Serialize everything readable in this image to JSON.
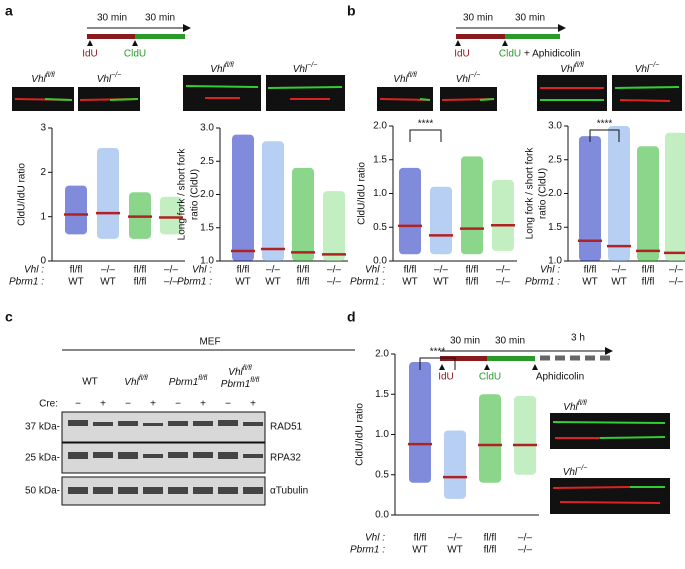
{
  "figure": {
    "panels": [
      "a",
      "b",
      "c",
      "d"
    ],
    "timeline_a": {
      "durations": [
        "30 min",
        "30 min"
      ],
      "labels": [
        "IdU",
        "CldU"
      ]
    },
    "timeline_b": {
      "durations": [
        "30 min",
        "30 min"
      ],
      "labels": [
        "IdU",
        "CldU"
      ],
      "extra": "+ Aphidicolin"
    },
    "timeline_d": {
      "durations": [
        "30 min",
        "30 min",
        "3 h"
      ],
      "labels": [
        "IdU",
        "CldU",
        "Aphidicolin"
      ]
    },
    "gene": "Vhl",
    "genotypes": [
      "fl/fl",
      "−/−"
    ],
    "blot": {
      "header": "MEF",
      "groups": [
        "WT",
        "Vhl",
        "Pbrm1",
        "Vhl",
        "Pbrm1"
      ],
      "group_sup": "fl/fl",
      "cre_label": "Cre:",
      "cre": [
        "−",
        "+",
        "−",
        "+",
        "−",
        "+",
        "−",
        "+"
      ],
      "proteins": [
        "RAD51",
        "RPA32",
        "αTubulin"
      ],
      "markers": [
        "37 kDa-",
        "25 kDa-",
        "50 kDa-"
      ]
    }
  },
  "chart_data": [
    {
      "type": "dot",
      "ylabel": [
        "CldU/IdU ratio"
      ],
      "row_labels": [
        "Vhl :",
        "Pbrm1 :"
      ],
      "vhl": [
        "fl/fl",
        "–/–",
        "fl/fl",
        "–/–"
      ],
      "pbrm1": [
        "WT",
        "WT",
        "fl/fl",
        "–/–"
      ],
      "values": [
        1.05,
        1.08,
        1.0,
        0.98
      ],
      "ranges": [
        [
          0.6,
          1.7
        ],
        [
          0.5,
          2.55
        ],
        [
          0.5,
          1.55
        ],
        [
          0.6,
          1.45
        ]
      ],
      "colors": [
        "#1a2bbf",
        "#7aa8e8",
        "#2db52d",
        "#90e090"
      ],
      "median_color": "#b22222",
      "ylim": [
        0,
        3
      ],
      "yticks": [
        0,
        1,
        2,
        3
      ]
    },
    {
      "type": "dot",
      "ylabel": [
        "Long fork / short fork",
        "ratio (CldU)"
      ],
      "row_labels": [
        "Vhl :",
        "Pbrm1 :"
      ],
      "vhl": [
        "fl/fl",
        "–/–",
        "fl/fl",
        "–/–"
      ],
      "pbrm1": [
        "WT",
        "WT",
        "fl/fl",
        "–/–"
      ],
      "values": [
        1.15,
        1.18,
        1.13,
        1.1
      ],
      "ranges": [
        [
          1,
          2.9
        ],
        [
          1,
          2.8
        ],
        [
          1,
          2.4
        ],
        [
          1,
          2.05
        ]
      ],
      "colors": [
        "#1a2bbf",
        "#7aa8e8",
        "#2db52d",
        "#90e090"
      ],
      "median_color": "#b22222",
      "ylim": [
        1,
        3
      ],
      "yticks": [
        {
          "value": 1,
          "label": "1.0"
        },
        1.5,
        {
          "value": 2,
          "label": "2.0"
        },
        2.5,
        {
          "value": 3,
          "label": "3.0"
        }
      ]
    },
    {
      "type": "dot",
      "ylabel": [
        "CldU/IdU ratio"
      ],
      "row_labels": [
        "Vhl :",
        "Pbrm1 :"
      ],
      "vhl": [
        "fl/fl",
        "–/–",
        "fl/fl",
        "–/–"
      ],
      "pbrm1": [
        "WT",
        "WT",
        "fl/fl",
        "–/–"
      ],
      "values": [
        0.52,
        0.38,
        0.48,
        0.53
      ],
      "ranges": [
        [
          0.1,
          1.38
        ],
        [
          0.1,
          1.1
        ],
        [
          0.1,
          1.55
        ],
        [
          0.15,
          1.2
        ]
      ],
      "colors": [
        "#1a2bbf",
        "#7aa8e8",
        "#2db52d",
        "#90e090"
      ],
      "median_color": "#b22222",
      "ylim": [
        0,
        2
      ],
      "yticks": [
        {
          "value": 0,
          "label": "0.0"
        },
        0.5,
        {
          "value": 1,
          "label": "1.0"
        },
        1.5,
        {
          "value": 2,
          "label": "2.0"
        }
      ],
      "annotation": "****"
    },
    {
      "type": "dot",
      "ylabel": [
        "Long fork / short fork",
        "ratio (CldU)"
      ],
      "row_labels": [
        "Vhl :",
        "Pbrm1 :"
      ],
      "vhl": [
        "fl/fl",
        "–/–",
        "fl/fl",
        "–/–"
      ],
      "pbrm1": [
        "WT",
        "WT",
        "fl/fl",
        "–/–"
      ],
      "values": [
        1.3,
        1.22,
        1.15,
        1.12
      ],
      "ranges": [
        [
          1,
          2.85
        ],
        [
          1,
          3.0
        ],
        [
          1,
          2.7
        ],
        [
          1,
          2.9
        ]
      ],
      "colors": [
        "#1a2bbf",
        "#7aa8e8",
        "#2db52d",
        "#90e090"
      ],
      "median_color": "#b22222",
      "ylim": [
        1,
        3
      ],
      "yticks": [
        {
          "value": 1,
          "label": "1.0"
        },
        1.5,
        {
          "value": 2,
          "label": "2.0"
        },
        2.5,
        {
          "value": 3,
          "label": "3.0"
        }
      ],
      "annotation": "****"
    },
    {
      "type": "dot",
      "ylabel": [
        "CldU/IdU ratio"
      ],
      "row_labels": [
        "Vhl :",
        "Pbrm1 :"
      ],
      "vhl": [
        "fl/fl",
        "–/–",
        "fl/fl",
        "–/–"
      ],
      "pbrm1": [
        "WT",
        "WT",
        "fl/fl",
        "–/–"
      ],
      "values": [
        0.88,
        0.47,
        0.87,
        0.87
      ],
      "ranges": [
        [
          0.4,
          1.9
        ],
        [
          0.2,
          1.05
        ],
        [
          0.4,
          1.5
        ],
        [
          0.5,
          1.48
        ]
      ],
      "colors": [
        "#1a2bbf",
        "#7aa8e8",
        "#2db52d",
        "#90e090"
      ],
      "median_color": "#b22222",
      "ylim": [
        0,
        2
      ],
      "yticks": [
        {
          "value": 0,
          "label": "0.0"
        },
        0.5,
        {
          "value": 1,
          "label": "1.0"
        },
        1.5,
        {
          "value": 2,
          "label": "2.0"
        }
      ],
      "annotation": "****"
    }
  ]
}
